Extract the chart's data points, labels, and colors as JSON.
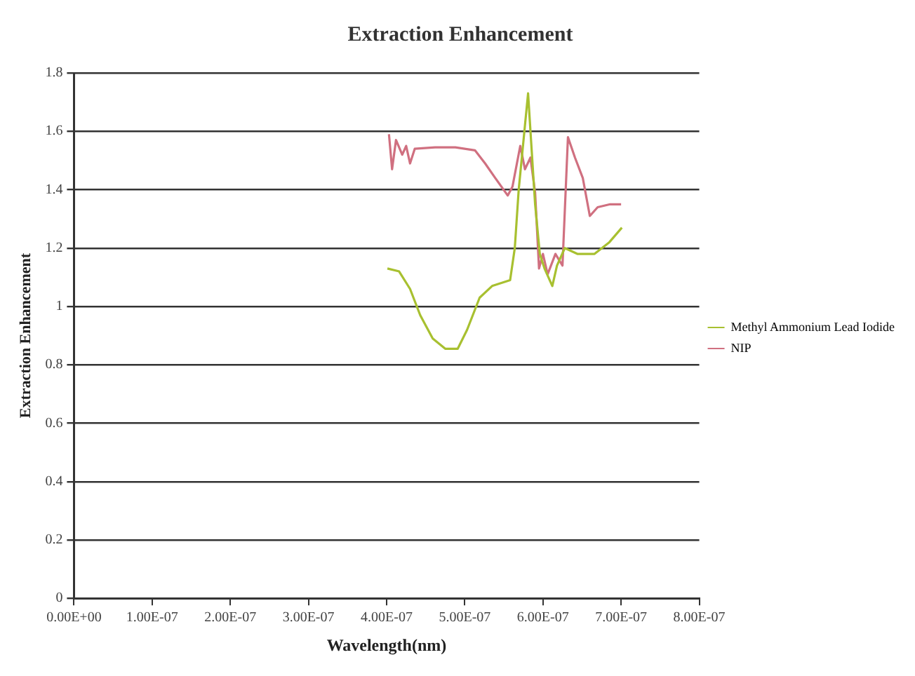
{
  "chart_data": {
    "type": "line",
    "title": "Extraction Enhancement",
    "xlabel": "Wavelength(nm)",
    "ylabel": "Extraction Enhancement",
    "xlim": [
      0,
      8e-07
    ],
    "xticks": [
      {
        "value": 0,
        "label": "0.00E+00"
      },
      {
        "value": 1e-07,
        "label": "1.00E-07"
      },
      {
        "value": 2e-07,
        "label": "2.00E-07"
      },
      {
        "value": 3e-07,
        "label": "3.00E-07"
      },
      {
        "value": 4e-07,
        "label": "4.00E-07"
      },
      {
        "value": 5e-07,
        "label": "5.00E-07"
      },
      {
        "value": 6e-07,
        "label": "6.00E-07"
      },
      {
        "value": 7e-07,
        "label": "7.00E-07"
      },
      {
        "value": 8e-07,
        "label": "8.00E-07"
      }
    ],
    "ylim": [
      0,
      1.8
    ],
    "yticks": [
      0,
      0.2,
      0.4,
      0.6,
      0.8,
      1,
      1.2,
      1.4,
      1.6,
      1.8
    ],
    "grid": "y",
    "legend": "right",
    "marker": "none",
    "series": [
      {
        "name": "Methyl Ammonium Lead Iodide",
        "color": "#a8c030",
        "x": [
          4.01e-07,
          4.16e-07,
          4.3e-07,
          4.43e-07,
          4.59e-07,
          4.75e-07,
          4.91e-07,
          5.03e-07,
          5.19e-07,
          5.35e-07,
          5.58e-07,
          5.64e-07,
          5.69e-07,
          5.77e-07,
          5.81e-07,
          5.85e-07,
          5.9e-07,
          5.96e-07,
          6.02e-07,
          6.12e-07,
          6.18e-07,
          6.28e-07,
          6.44e-07,
          6.66e-07,
          6.85e-07,
          7.01e-07
        ],
        "values": [
          1.13,
          1.12,
          1.06,
          0.97,
          0.89,
          0.855,
          0.855,
          0.92,
          1.03,
          1.07,
          1.09,
          1.2,
          1.4,
          1.62,
          1.73,
          1.56,
          1.35,
          1.18,
          1.13,
          1.07,
          1.14,
          1.2,
          1.18,
          1.18,
          1.22,
          1.27
        ]
      },
      {
        "name": "NIP",
        "color": "#d07080",
        "x": [
          4.03e-07,
          4.07e-07,
          4.12e-07,
          4.2e-07,
          4.25e-07,
          4.3e-07,
          4.36e-07,
          4.62e-07,
          4.88e-07,
          5.13e-07,
          5.26e-07,
          5.39e-07,
          5.55e-07,
          5.61e-07,
          5.71e-07,
          5.77e-07,
          5.84e-07,
          5.9e-07,
          5.95e-07,
          6e-07,
          6.06e-07,
          6.16e-07,
          6.25e-07,
          6.32e-07,
          6.41e-07,
          6.51e-07,
          6.6e-07,
          6.7e-07,
          6.86e-07,
          7e-07
        ],
        "values": [
          1.59,
          1.47,
          1.57,
          1.52,
          1.55,
          1.49,
          1.54,
          1.545,
          1.545,
          1.535,
          1.49,
          1.44,
          1.38,
          1.41,
          1.55,
          1.47,
          1.51,
          1.39,
          1.13,
          1.18,
          1.11,
          1.18,
          1.14,
          1.58,
          1.51,
          1.44,
          1.31,
          1.34,
          1.35,
          1.35
        ]
      }
    ]
  }
}
